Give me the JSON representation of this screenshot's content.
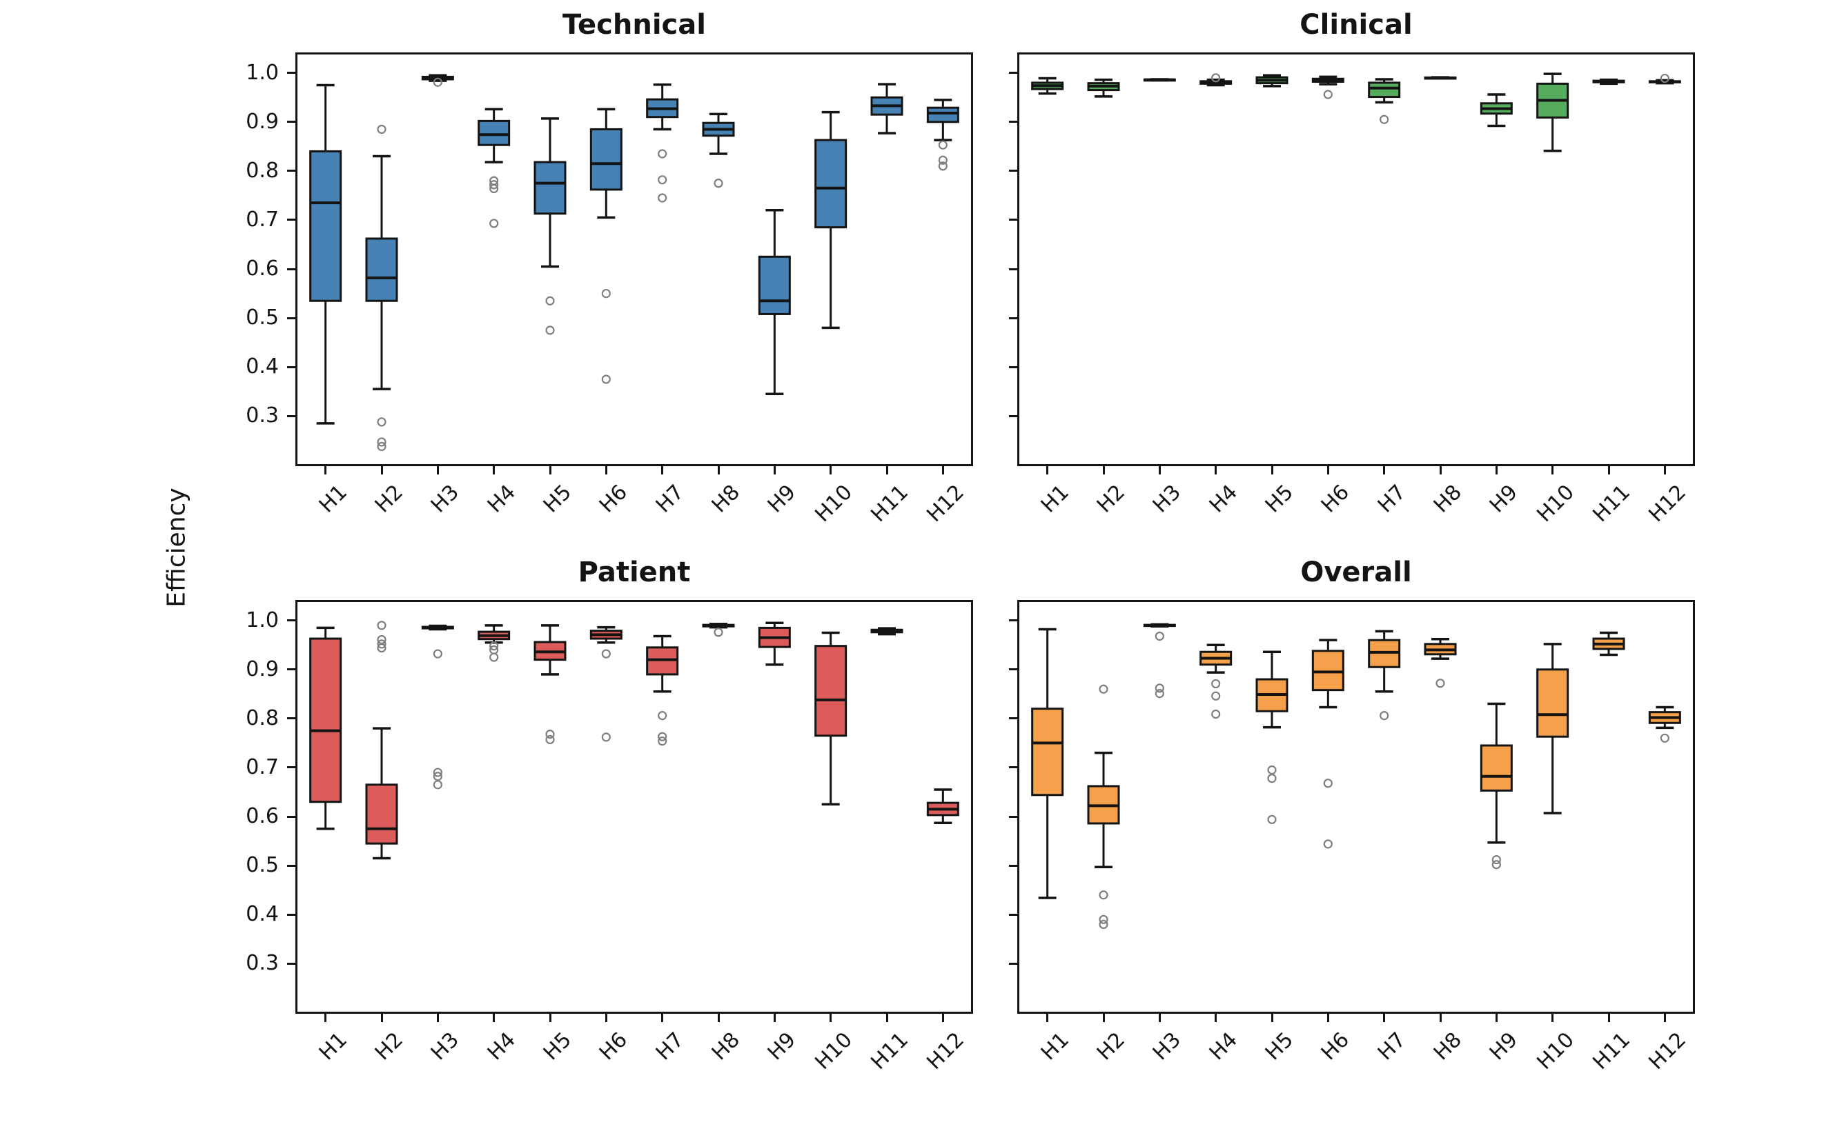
{
  "figure": {
    "ylabel": "Efficiency",
    "background": "#ffffff"
  },
  "chart_data": {
    "type": "box",
    "title": "",
    "ylabel": "Efficiency",
    "xlabel": "",
    "categories": [
      "H1",
      "H2",
      "H3",
      "H4",
      "H5",
      "H6",
      "H7",
      "H8",
      "H9",
      "H10",
      "H11",
      "H12"
    ],
    "y_ticks": [
      1.0,
      0.9,
      0.8,
      0.7,
      0.6,
      0.5,
      0.4,
      0.3
    ],
    "ylim": [
      0.2019,
      1.0376
    ],
    "grid": false,
    "legend": "none",
    "x_tick_rotation": 45,
    "edge_color": "#141414",
    "flier_color": "#7f7f7f",
    "panels": [
      {
        "title": "Technical",
        "color": "#4682B4",
        "position": "top-left",
        "y_tick_labels_visible": true,
        "boxes": [
          {
            "label": "H1",
            "whislo": 0.285,
            "q1": 0.535,
            "med": 0.735,
            "q3": 0.84,
            "whishi": 0.975,
            "fliers": []
          },
          {
            "label": "H2",
            "whislo": 0.355,
            "q1": 0.535,
            "med": 0.582,
            "q3": 0.662,
            "whishi": 0.83,
            "fliers": [
              0.885,
              0.288,
              0.247,
              0.238
            ]
          },
          {
            "label": "H3",
            "whislo": 0.984,
            "q1": 0.987,
            "med": 0.99,
            "q3": 0.992,
            "whishi": 0.995,
            "fliers": [
              0.981
            ]
          },
          {
            "label": "H4",
            "whislo": 0.818,
            "q1": 0.853,
            "med": 0.874,
            "q3": 0.902,
            "whishi": 0.926,
            "fliers": [
              0.78,
              0.772,
              0.764,
              0.693
            ]
          },
          {
            "label": "H5",
            "whislo": 0.605,
            "q1": 0.713,
            "med": 0.775,
            "q3": 0.818,
            "whishi": 0.907,
            "fliers": [
              0.535,
              0.475
            ]
          },
          {
            "label": "H6",
            "whislo": 0.705,
            "q1": 0.762,
            "med": 0.815,
            "q3": 0.885,
            "whishi": 0.926,
            "fliers": [
              0.55,
              0.375
            ]
          },
          {
            "label": "H7",
            "whislo": 0.885,
            "q1": 0.91,
            "med": 0.927,
            "q3": 0.946,
            "whishi": 0.976,
            "fliers": [
              0.835,
              0.782,
              0.745
            ]
          },
          {
            "label": "H8",
            "whislo": 0.835,
            "q1": 0.872,
            "med": 0.885,
            "q3": 0.898,
            "whishi": 0.916,
            "fliers": [
              0.775
            ]
          },
          {
            "label": "H9",
            "whislo": 0.345,
            "q1": 0.508,
            "med": 0.535,
            "q3": 0.625,
            "whishi": 0.72,
            "fliers": []
          },
          {
            "label": "H10",
            "whislo": 0.48,
            "q1": 0.685,
            "med": 0.765,
            "q3": 0.863,
            "whishi": 0.92,
            "fliers": []
          },
          {
            "label": "H11",
            "whislo": 0.877,
            "q1": 0.915,
            "med": 0.933,
            "q3": 0.95,
            "whishi": 0.977,
            "fliers": []
          },
          {
            "label": "H12",
            "whislo": 0.863,
            "q1": 0.9,
            "med": 0.918,
            "q3": 0.929,
            "whishi": 0.945,
            "fliers": [
              0.853,
              0.822,
              0.81
            ]
          }
        ]
      },
      {
        "title": "Clinical",
        "color": "#55AC5C",
        "position": "top-right",
        "y_tick_labels_visible": false,
        "boxes": [
          {
            "label": "H1",
            "whislo": 0.958,
            "q1": 0.967,
            "med": 0.974,
            "q3": 0.98,
            "whishi": 0.989,
            "fliers": []
          },
          {
            "label": "H2",
            "whislo": 0.952,
            "q1": 0.965,
            "med": 0.973,
            "q3": 0.979,
            "whishi": 0.986,
            "fliers": []
          },
          {
            "label": "H3",
            "whislo": 0.985,
            "q1": 0.9855,
            "med": 0.986,
            "q3": 0.9865,
            "whishi": 0.987,
            "fliers": []
          },
          {
            "label": "H4",
            "whislo": 0.975,
            "q1": 0.978,
            "med": 0.981,
            "q3": 0.983,
            "whishi": 0.986,
            "fliers": [
              0.99
            ]
          },
          {
            "label": "H5",
            "whislo": 0.973,
            "q1": 0.979,
            "med": 0.985,
            "q3": 0.991,
            "whishi": 0.995,
            "fliers": []
          },
          {
            "label": "H6",
            "whislo": 0.977,
            "q1": 0.982,
            "med": 0.985,
            "q3": 0.988,
            "whishi": 0.992,
            "fliers": [
              0.956
            ]
          },
          {
            "label": "H7",
            "whislo": 0.94,
            "q1": 0.951,
            "med": 0.969,
            "q3": 0.98,
            "whishi": 0.987,
            "fliers": [
              0.905
            ]
          },
          {
            "label": "H8",
            "whislo": 0.989,
            "q1": 0.9895,
            "med": 0.99,
            "q3": 0.9905,
            "whishi": 0.991,
            "fliers": []
          },
          {
            "label": "H9",
            "whislo": 0.892,
            "q1": 0.917,
            "med": 0.927,
            "q3": 0.938,
            "whishi": 0.956,
            "fliers": []
          },
          {
            "label": "H10",
            "whislo": 0.841,
            "q1": 0.909,
            "med": 0.944,
            "q3": 0.978,
            "whishi": 0.998,
            "fliers": []
          },
          {
            "label": "H11",
            "whislo": 0.978,
            "q1": 0.981,
            "med": 0.982,
            "q3": 0.984,
            "whishi": 0.986,
            "fliers": []
          },
          {
            "label": "H12",
            "whislo": 0.979,
            "q1": 0.981,
            "med": 0.982,
            "q3": 0.983,
            "whishi": 0.985,
            "fliers": [
              0.989
            ]
          }
        ]
      },
      {
        "title": "Patient",
        "color": "#DC5C5C",
        "position": "bottom-left",
        "y_tick_labels_visible": true,
        "boxes": [
          {
            "label": "H1",
            "whislo": 0.575,
            "q1": 0.63,
            "med": 0.775,
            "q3": 0.963,
            "whishi": 0.985,
            "fliers": []
          },
          {
            "label": "H2",
            "whislo": 0.515,
            "q1": 0.545,
            "med": 0.575,
            "q3": 0.665,
            "whishi": 0.78,
            "fliers": [
              0.99,
              0.961,
              0.952,
              0.944
            ]
          },
          {
            "label": "H3",
            "whislo": 0.982,
            "q1": 0.984,
            "med": 0.985,
            "q3": 0.987,
            "whishi": 0.989,
            "fliers": [
              0.932,
              0.69,
              0.682,
              0.665
            ]
          },
          {
            "label": "H4",
            "whislo": 0.955,
            "q1": 0.962,
            "med": 0.969,
            "q3": 0.977,
            "whishi": 0.99,
            "fliers": [
              0.948,
              0.94,
              0.925
            ]
          },
          {
            "label": "H5",
            "whislo": 0.89,
            "q1": 0.92,
            "med": 0.936,
            "q3": 0.956,
            "whishi": 0.99,
            "fliers": [
              0.768,
              0.757
            ]
          },
          {
            "label": "H6",
            "whislo": 0.955,
            "q1": 0.963,
            "med": 0.971,
            "q3": 0.979,
            "whishi": 0.986,
            "fliers": [
              0.932,
              0.762
            ]
          },
          {
            "label": "H7",
            "whislo": 0.855,
            "q1": 0.89,
            "med": 0.92,
            "q3": 0.945,
            "whishi": 0.968,
            "fliers": [
              0.806,
              0.763,
              0.754
            ]
          },
          {
            "label": "H8",
            "whislo": 0.986,
            "q1": 0.988,
            "med": 0.989,
            "q3": 0.991,
            "whishi": 0.993,
            "fliers": [
              0.976
            ]
          },
          {
            "label": "H9",
            "whislo": 0.91,
            "q1": 0.946,
            "med": 0.965,
            "q3": 0.985,
            "whishi": 0.995,
            "fliers": []
          },
          {
            "label": "H10",
            "whislo": 0.625,
            "q1": 0.765,
            "med": 0.838,
            "q3": 0.948,
            "whishi": 0.975,
            "fliers": []
          },
          {
            "label": "H11",
            "whislo": 0.972,
            "q1": 0.976,
            "med": 0.978,
            "q3": 0.981,
            "whishi": 0.984,
            "fliers": []
          },
          {
            "label": "H12",
            "whislo": 0.587,
            "q1": 0.603,
            "med": 0.615,
            "q3": 0.628,
            "whishi": 0.655,
            "fliers": []
          }
        ]
      },
      {
        "title": "Overall",
        "color": "#F5A04A",
        "position": "bottom-right",
        "y_tick_labels_visible": false,
        "boxes": [
          {
            "label": "H1",
            "whislo": 0.434,
            "q1": 0.644,
            "med": 0.75,
            "q3": 0.82,
            "whishi": 0.982,
            "fliers": []
          },
          {
            "label": "H2",
            "whislo": 0.497,
            "q1": 0.586,
            "med": 0.622,
            "q3": 0.662,
            "whishi": 0.73,
            "fliers": [
              0.86,
              0.44,
              0.39,
              0.38
            ]
          },
          {
            "label": "H3",
            "whislo": 0.988,
            "q1": 0.989,
            "med": 0.99,
            "q3": 0.991,
            "whishi": 0.992,
            "fliers": [
              0.968,
              0.862,
              0.851
            ]
          },
          {
            "label": "H4",
            "whislo": 0.894,
            "q1": 0.91,
            "med": 0.923,
            "q3": 0.936,
            "whishi": 0.95,
            "fliers": [
              0.871,
              0.846,
              0.809
            ]
          },
          {
            "label": "H5",
            "whislo": 0.782,
            "q1": 0.815,
            "med": 0.849,
            "q3": 0.88,
            "whishi": 0.936,
            "fliers": [
              0.695,
              0.678,
              0.594
            ]
          },
          {
            "label": "H6",
            "whislo": 0.823,
            "q1": 0.858,
            "med": 0.895,
            "q3": 0.938,
            "whishi": 0.96,
            "fliers": [
              0.668,
              0.544
            ]
          },
          {
            "label": "H7",
            "whislo": 0.855,
            "q1": 0.905,
            "med": 0.935,
            "q3": 0.96,
            "whishi": 0.978,
            "fliers": [
              0.806
            ]
          },
          {
            "label": "H8",
            "whislo": 0.922,
            "q1": 0.931,
            "med": 0.94,
            "q3": 0.952,
            "whishi": 0.962,
            "fliers": [
              0.872
            ]
          },
          {
            "label": "H9",
            "whislo": 0.547,
            "q1": 0.653,
            "med": 0.682,
            "q3": 0.745,
            "whishi": 0.83,
            "fliers": [
              0.512,
              0.502
            ]
          },
          {
            "label": "H10",
            "whislo": 0.607,
            "q1": 0.763,
            "med": 0.808,
            "q3": 0.9,
            "whishi": 0.952,
            "fliers": []
          },
          {
            "label": "H11",
            "whislo": 0.93,
            "q1": 0.942,
            "med": 0.952,
            "q3": 0.963,
            "whishi": 0.975,
            "fliers": []
          },
          {
            "label": "H12",
            "whislo": 0.781,
            "q1": 0.791,
            "med": 0.802,
            "q3": 0.813,
            "whishi": 0.823,
            "fliers": [
              0.76
            ]
          }
        ]
      }
    ]
  }
}
